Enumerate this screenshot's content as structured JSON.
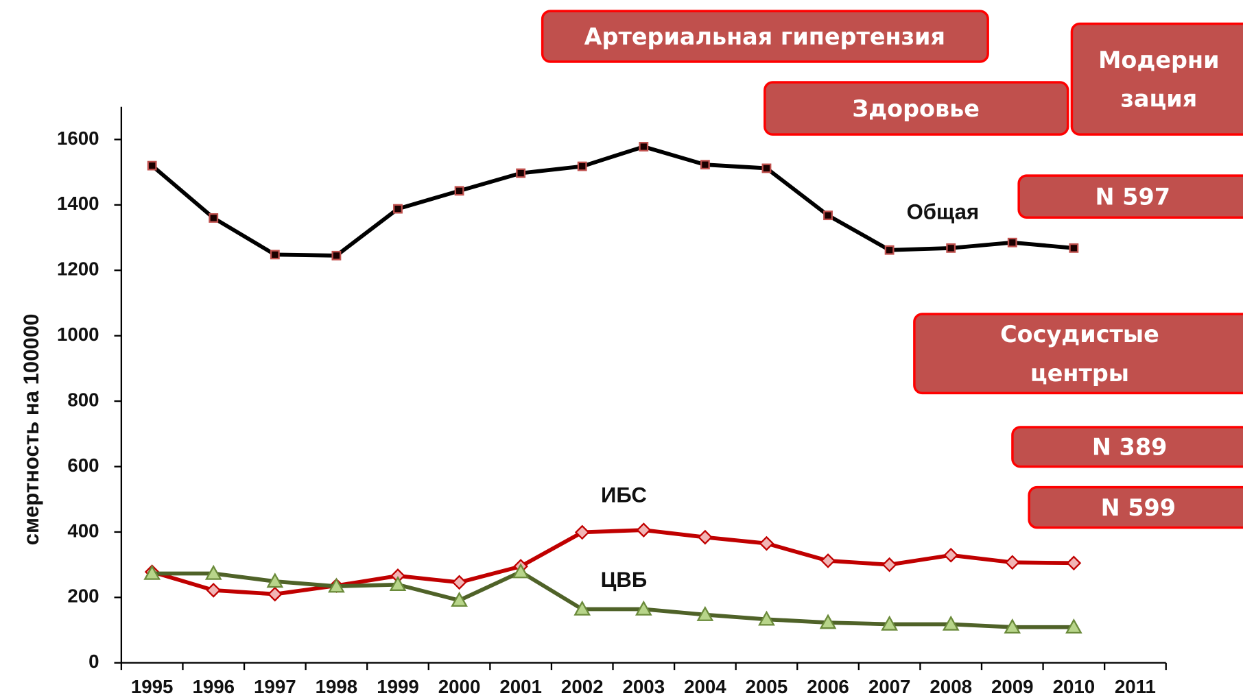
{
  "chart_data": {
    "type": "line",
    "y_label": "смертность  на 100000",
    "categories": [
      "1995",
      "1996",
      "1997",
      "1998",
      "1999",
      "2000",
      "2001",
      "2002",
      "2003",
      "2004",
      "2005",
      "2006",
      "2007",
      "2008",
      "2009",
      "2010",
      "2011"
    ],
    "series": [
      {
        "name": "Общая",
        "color": "#000000",
        "marker": "square",
        "values": [
          1520,
          1360,
          1248,
          1245,
          1388,
          1443,
          1497,
          1518,
          1578,
          1523,
          1512,
          1368,
          1262,
          1268,
          1285,
          1268,
          null
        ]
      },
      {
        "name": "ИБС",
        "color": "#c00000",
        "marker": "diamond",
        "values": [
          278,
          222,
          210,
          236,
          266,
          246,
          295,
          399,
          406,
          384,
          365,
          312,
          300,
          329,
          307,
          305,
          null
        ]
      },
      {
        "name": "ЦВБ",
        "color": "#4f6228",
        "marker": "triangle",
        "values": [
          273,
          273,
          249,
          234,
          239,
          191,
          278,
          164,
          164,
          147,
          133,
          123,
          118,
          118,
          109,
          109,
          null
        ]
      }
    ],
    "ylim": [
      0,
      1700
    ],
    "yticks": [
      0,
      200,
      400,
      600,
      800,
      1000,
      1200,
      1400,
      1600
    ],
    "annotations": [
      {
        "lines": [
          "Артериальная гипертензия"
        ]
      },
      {
        "lines": [
          "Здоровье"
        ]
      },
      {
        "lines": [
          "Модерни",
          "зация"
        ]
      },
      {
        "lines": [
          "N 597"
        ]
      },
      {
        "lines": [
          "Сосудистые",
          "центры"
        ]
      },
      {
        "lines": [
          "N 389"
        ]
      },
      {
        "lines": [
          "N 599"
        ]
      }
    ]
  }
}
